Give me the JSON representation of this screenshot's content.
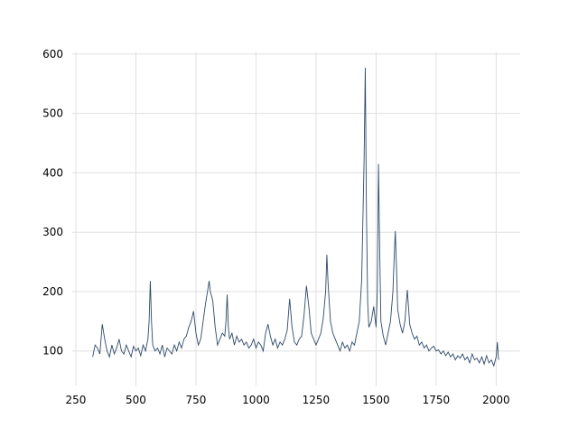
{
  "chart_data": {
    "type": "line",
    "x": [
      320,
      330,
      340,
      350,
      360,
      370,
      380,
      390,
      400,
      410,
      420,
      430,
      440,
      450,
      460,
      470,
      480,
      490,
      500,
      510,
      520,
      530,
      540,
      550,
      555,
      560,
      565,
      570,
      580,
      590,
      600,
      610,
      620,
      630,
      640,
      650,
      660,
      670,
      680,
      690,
      700,
      710,
      720,
      730,
      740,
      750,
      760,
      770,
      780,
      790,
      800,
      805,
      810,
      820,
      830,
      840,
      850,
      860,
      870,
      875,
      880,
      885,
      890,
      900,
      910,
      920,
      930,
      940,
      950,
      960,
      970,
      980,
      990,
      1000,
      1010,
      1020,
      1030,
      1040,
      1050,
      1060,
      1070,
      1080,
      1090,
      1100,
      1110,
      1120,
      1130,
      1140,
      1150,
      1160,
      1170,
      1180,
      1190,
      1200,
      1210,
      1220,
      1230,
      1240,
      1250,
      1260,
      1270,
      1280,
      1290,
      1295,
      1300,
      1310,
      1320,
      1330,
      1340,
      1350,
      1360,
      1370,
      1380,
      1390,
      1400,
      1410,
      1420,
      1430,
      1440,
      1450,
      1455,
      1460,
      1465,
      1470,
      1480,
      1490,
      1500,
      1505,
      1510,
      1515,
      1520,
      1530,
      1540,
      1550,
      1560,
      1570,
      1575,
      1580,
      1585,
      1590,
      1600,
      1610,
      1620,
      1630,
      1640,
      1650,
      1660,
      1670,
      1680,
      1690,
      1700,
      1710,
      1720,
      1730,
      1740,
      1750,
      1760,
      1770,
      1780,
      1790,
      1800,
      1810,
      1820,
      1830,
      1840,
      1850,
      1860,
      1870,
      1880,
      1890,
      1900,
      1910,
      1920,
      1930,
      1940,
      1950,
      1960,
      1970,
      1980,
      1990,
      2000,
      2005,
      2010
    ],
    "series": [
      {
        "color": "#2e4a6b",
        "values": [
          90,
          110,
          105,
          95,
          145,
          120,
          100,
          90,
          110,
          95,
          105,
          120,
          100,
          95,
          110,
          100,
          90,
          108,
          100,
          105,
          92,
          110,
          100,
          120,
          150,
          218,
          150,
          110,
          100,
          105,
          95,
          110,
          90,
          105,
          100,
          95,
          110,
          100,
          115,
          105,
          120,
          125,
          140,
          150,
          167,
          130,
          110,
          120,
          150,
          180,
          205,
          218,
          200,
          185,
          140,
          110,
          120,
          130,
          125,
          150,
          195,
          140,
          120,
          130,
          110,
          125,
          115,
          120,
          110,
          115,
          105,
          110,
          120,
          105,
          115,
          110,
          100,
          130,
          145,
          125,
          110,
          120,
          105,
          115,
          110,
          120,
          135,
          188,
          140,
          115,
          110,
          120,
          125,
          160,
          210,
          175,
          130,
          120,
          110,
          120,
          130,
          155,
          200,
          262,
          215,
          150,
          130,
          120,
          110,
          100,
          115,
          105,
          110,
          100,
          115,
          110,
          130,
          150,
          220,
          420,
          577,
          330,
          180,
          140,
          150,
          175,
          140,
          200,
          415,
          270,
          150,
          125,
          110,
          130,
          150,
          200,
          255,
          302,
          240,
          170,
          145,
          130,
          150,
          203,
          145,
          130,
          120,
          125,
          110,
          115,
          105,
          110,
          100,
          105,
          108,
          100,
          102,
          95,
          100,
          92,
          98,
          90,
          95,
          85,
          92,
          88,
          95,
          85,
          90,
          80,
          95,
          85,
          88,
          80,
          90,
          78,
          92,
          80,
          85,
          75,
          90,
          115,
          85
        ]
      }
    ],
    "xlim": [
      235,
      2100
    ],
    "ylim": [
      41.5,
      603.5
    ],
    "xticks": [
      250,
      500,
      750,
      1000,
      1250,
      1500,
      1750,
      2000
    ],
    "yticks": [
      100,
      200,
      300,
      400,
      500,
      600
    ],
    "grid": true
  }
}
